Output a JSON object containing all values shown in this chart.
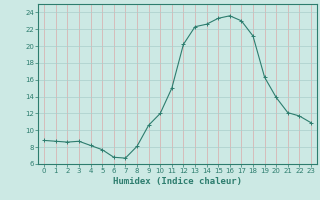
{
  "x": [
    0,
    1,
    2,
    3,
    4,
    5,
    6,
    7,
    8,
    9,
    10,
    11,
    12,
    13,
    14,
    15,
    16,
    17,
    18,
    19,
    20,
    21,
    22,
    23
  ],
  "y": [
    8.8,
    8.7,
    8.6,
    8.7,
    8.2,
    7.7,
    6.8,
    6.7,
    8.1,
    10.6,
    12.0,
    15.0,
    20.2,
    22.3,
    22.6,
    23.3,
    23.6,
    23.0,
    21.2,
    16.3,
    13.9,
    12.1,
    11.7,
    10.9
  ],
  "line_color": "#2d7d6e",
  "marker": "+",
  "marker_size": 3,
  "line_width": 0.8,
  "bg_color": "#cce9e4",
  "xlabel": "Humidex (Indice chaleur)",
  "ylabel": "",
  "title": "",
  "xlim": [
    -0.5,
    23.5
  ],
  "ylim": [
    6,
    25
  ],
  "yticks": [
    6,
    8,
    10,
    12,
    14,
    16,
    18,
    20,
    22,
    24
  ],
  "xticks": [
    0,
    1,
    2,
    3,
    4,
    5,
    6,
    7,
    8,
    9,
    10,
    11,
    12,
    13,
    14,
    15,
    16,
    17,
    18,
    19,
    20,
    21,
    22,
    23
  ],
  "tick_color": "#2d7d6e",
  "tick_fontsize": 5,
  "xlabel_fontsize": 6.5,
  "grid_color_v": "#d9aaaa",
  "grid_color_h": "#aacfcb"
}
